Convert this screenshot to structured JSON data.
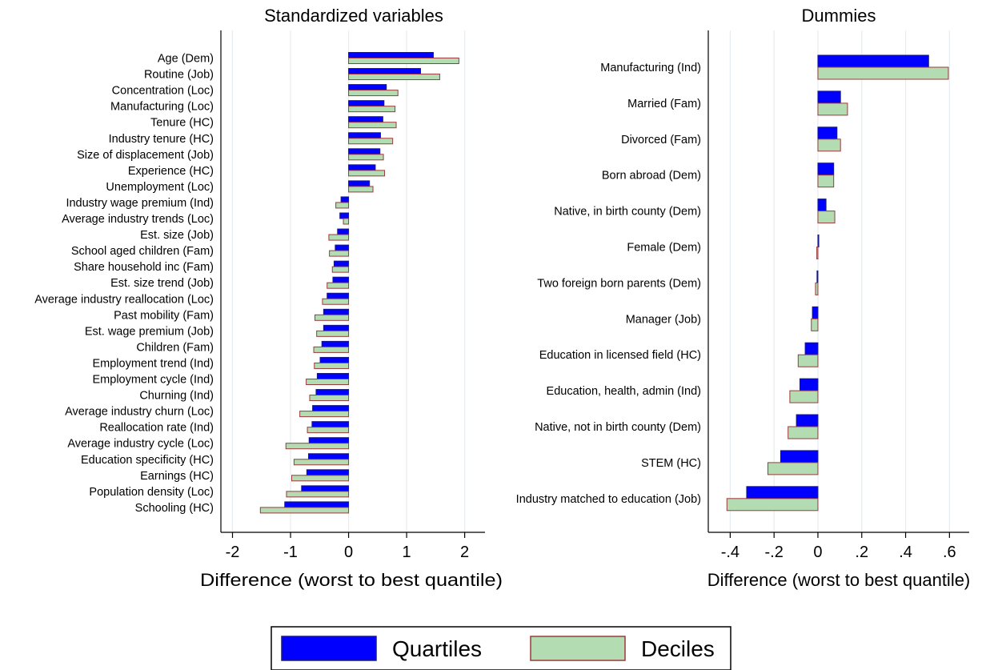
{
  "legend": {
    "items": [
      {
        "label": "Quartiles",
        "fill": "#0000ff",
        "stroke": "#1a1a80"
      },
      {
        "label": "Deciles",
        "fill": "#b3dcb3",
        "stroke": "#9b3a3a"
      }
    ],
    "placement": "bottom-center"
  },
  "chart_data": [
    {
      "type": "bar",
      "orientation": "horizontal",
      "title": "Standardized variables",
      "xlabel": "Difference (worst to best quantile)",
      "xlim": [
        -2.2,
        2.35
      ],
      "xticks": [
        -2,
        -1,
        0,
        1,
        2
      ],
      "xtick_labels": [
        "-2",
        "-1",
        "0",
        "1",
        "2"
      ],
      "grid": true,
      "categories": [
        "Age (Dem)",
        "Routine (Job)",
        "Concentration (Loc)",
        "Manufacturing (Loc)",
        "Tenure (HC)",
        "Industry tenure (HC)",
        "Size of displacement (Job)",
        "Experience (HC)",
        "Unemployment (Loc)",
        "Industry wage premium (Ind)",
        "Average industry trends (Loc)",
        "Est. size (Job)",
        "School aged children (Fam)",
        "Share household inc (Fam)",
        "Est. size trend (Job)",
        "Average industry reallocation (Loc)",
        "Past mobility (Fam)",
        "Est. wage premium (Job)",
        "Children (Fam)",
        "Employment trend (Ind)",
        "Employment cycle (Ind)",
        "Churning (Ind)",
        "Average industry churn (Loc)",
        "Reallocation rate (Ind)",
        "Average industry cycle (Loc)",
        "Education specificity (HC)",
        "Earnings (HC)",
        "Population density (Loc)",
        "Schooling (HC)"
      ],
      "series": [
        {
          "name": "Quartiles",
          "values": [
            1.46,
            1.24,
            0.65,
            0.61,
            0.59,
            0.55,
            0.54,
            0.46,
            0.36,
            -0.13,
            -0.15,
            -0.19,
            -0.23,
            -0.25,
            -0.27,
            -0.37,
            -0.43,
            -0.43,
            -0.46,
            -0.49,
            -0.54,
            -0.56,
            -0.62,
            -0.63,
            -0.68,
            -0.69,
            -0.72,
            -0.81,
            -1.1
          ]
        },
        {
          "name": "Deciles",
          "values": [
            1.9,
            1.57,
            0.85,
            0.8,
            0.82,
            0.76,
            0.6,
            0.62,
            0.42,
            -0.22,
            -0.09,
            -0.34,
            -0.33,
            -0.28,
            -0.37,
            -0.45,
            -0.58,
            -0.55,
            -0.6,
            -0.59,
            -0.73,
            -0.67,
            -0.84,
            -0.71,
            -1.08,
            -0.94,
            -0.98,
            -1.07,
            -1.52
          ]
        }
      ]
    },
    {
      "type": "bar",
      "orientation": "horizontal",
      "title": "Dummies",
      "xlabel": "Difference (worst to best quantile)",
      "xlim": [
        -0.5,
        0.69
      ],
      "xticks": [
        -0.4,
        -0.2,
        0,
        0.2,
        0.4,
        0.6
      ],
      "xtick_labels": [
        "-.4",
        "-.2",
        "0",
        ".2",
        ".4",
        ".6"
      ],
      "grid": true,
      "categories": [
        "Manufacturing (Ind)",
        "Married (Fam)",
        "Divorced (Fam)",
        "Born abroad (Dem)",
        "Native, in birth county (Dem)",
        "Female (Dem)",
        "Two foreign born parents (Dem)",
        "Manager (Job)",
        "Education in licensed field (HC)",
        "Education, health, admin (Ind)",
        "Native, not in birth county (Dem)",
        "STEM (HC)",
        "Industry matched to education (Job)"
      ],
      "series": [
        {
          "name": "Quartiles",
          "values": [
            0.505,
            0.103,
            0.087,
            0.072,
            0.037,
            0.004,
            -0.004,
            -0.025,
            -0.058,
            -0.082,
            -0.098,
            -0.17,
            -0.325
          ]
        },
        {
          "name": "Deciles",
          "values": [
            0.595,
            0.135,
            0.103,
            0.072,
            0.077,
            -0.005,
            -0.011,
            -0.03,
            -0.09,
            -0.128,
            -0.136,
            -0.228,
            -0.415
          ]
        }
      ]
    }
  ]
}
